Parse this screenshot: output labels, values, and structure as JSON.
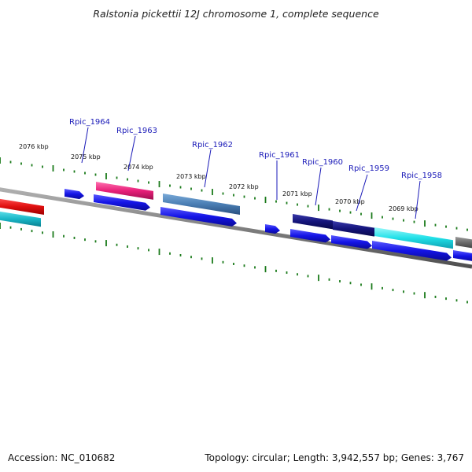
{
  "title": "Ralstonia pickettii 12J chromosome 1, complete sequence",
  "footer": {
    "accession": "Accession: NC_010682",
    "summary": "Topology: circular; Length: 3,942,557 bp; Genes: 3,767"
  },
  "scale_labels": [
    "2076 kbp",
    "2075 kbp",
    "2074 kbp",
    "2073 kbp",
    "2072 kbp",
    "2071 kbp",
    "2070 kbp",
    "2069 kbp"
  ],
  "gene_labels": [
    "Rpic_1964",
    "Rpic_1963",
    "Rpic_1962",
    "Rpic_1961",
    "Rpic_1960",
    "Rpic_1959",
    "Rpic_1958"
  ],
  "colors": {
    "backbone": "#808080",
    "tick": "#1a7a1a",
    "cds": "#1414e6",
    "red": "#e01010",
    "teal": "#1ab8c8",
    "pink": "#e8207a",
    "steelblue": "#4a7eb4",
    "navy": "#14147a",
    "cyan": "#20e0e8",
    "gray": "#6a6a6a",
    "label": "#1a1ab8"
  }
}
